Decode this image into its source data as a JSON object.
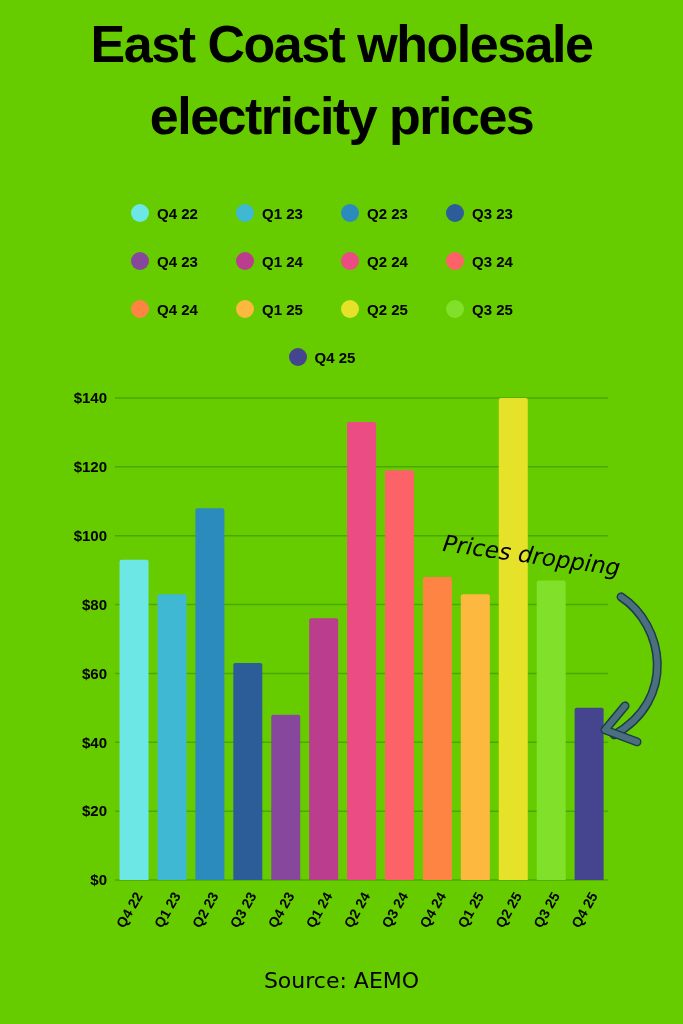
{
  "chart_data": {
    "type": "bar",
    "title": "East Coast wholesale electricity prices",
    "categories": [
      "Q4 22",
      "Q1 23",
      "Q2 23",
      "Q3 23",
      "Q4 23",
      "Q1 24",
      "Q2 24",
      "Q3 24",
      "Q4 24",
      "Q1 25",
      "Q2 25",
      "Q3 25",
      "Q4 25"
    ],
    "stacked": true,
    "series": [
      {
        "name": "Q4 22",
        "color": "#6de6e6",
        "values": [
          93,
          null,
          null,
          null,
          null,
          null,
          null,
          null,
          null,
          null,
          null,
          null,
          null
        ]
      },
      {
        "name": "Q1 23",
        "color": "#3fb8d4",
        "values": [
          null,
          83,
          null,
          null,
          null,
          null,
          null,
          null,
          null,
          null,
          null,
          null,
          null
        ]
      },
      {
        "name": "Q2 23",
        "color": "#2b8bbd",
        "values": [
          null,
          null,
          108,
          null,
          null,
          null,
          null,
          null,
          null,
          null,
          null,
          null,
          null
        ]
      },
      {
        "name": "Q3 23",
        "color": "#2c5d98",
        "values": [
          null,
          null,
          null,
          63,
          null,
          null,
          null,
          null,
          null,
          null,
          null,
          null,
          null
        ]
      },
      {
        "name": "Q4 23",
        "color": "#86479c",
        "values": [
          null,
          null,
          null,
          null,
          48,
          null,
          null,
          null,
          null,
          null,
          null,
          null,
          null
        ]
      },
      {
        "name": "Q1 24",
        "color": "#ba3d8e",
        "values": [
          null,
          null,
          null,
          null,
          null,
          76,
          null,
          null,
          null,
          null,
          null,
          null,
          null
        ]
      },
      {
        "name": "Q2 24",
        "color": "#ea4c83",
        "values": [
          null,
          null,
          null,
          null,
          null,
          null,
          133,
          null,
          null,
          null,
          null,
          null,
          null
        ]
      },
      {
        "name": "Q3 24",
        "color": "#fd6268",
        "values": [
          null,
          null,
          null,
          null,
          null,
          null,
          null,
          119,
          null,
          null,
          null,
          null,
          null
        ]
      },
      {
        "name": "Q4 24",
        "color": "#fe8443",
        "values": [
          null,
          null,
          null,
          null,
          null,
          null,
          null,
          null,
          88,
          null,
          null,
          null,
          null
        ]
      },
      {
        "name": "Q1 25",
        "color": "#fdb840",
        "values": [
          null,
          null,
          null,
          null,
          null,
          null,
          null,
          null,
          null,
          83,
          null,
          null,
          null
        ]
      },
      {
        "name": "Q2 25",
        "color": "#e6e22a",
        "values": [
          null,
          null,
          null,
          null,
          null,
          null,
          null,
          null,
          null,
          null,
          140,
          null,
          null
        ]
      },
      {
        "name": "Q3 25",
        "color": "#80e02a",
        "values": [
          null,
          null,
          null,
          null,
          null,
          null,
          null,
          null,
          null,
          null,
          null,
          87,
          null
        ]
      },
      {
        "name": "Q4 25",
        "color": "#44448f",
        "values": [
          null,
          null,
          null,
          null,
          null,
          null,
          null,
          null,
          null,
          null,
          null,
          null,
          50
        ]
      }
    ],
    "ylim": [
      0,
      140
    ],
    "yticks": [
      {
        "value": 0,
        "label": "$0"
      },
      {
        "value": 20,
        "label": "$20"
      },
      {
        "value": 40,
        "label": "$40"
      },
      {
        "value": 60,
        "label": "$60"
      },
      {
        "value": 80,
        "label": "$80"
      },
      {
        "value": 100,
        "label": "$100"
      },
      {
        "value": 120,
        "label": "$120"
      },
      {
        "value": 140,
        "label": "$140"
      }
    ],
    "grid": "y",
    "legend": "top",
    "annotations": [
      "Prices dropping",
      "Source: AEMO"
    ]
  }
}
